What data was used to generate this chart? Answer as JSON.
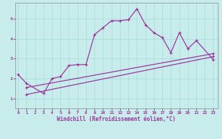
{
  "xlabel": "Windchill (Refroidissement éolien,°C)",
  "bg_color": "#c8ecec",
  "line_color": "#993399",
  "grid_color": "#aadddd",
  "x_ticks": [
    0,
    1,
    2,
    3,
    4,
    5,
    6,
    7,
    8,
    9,
    10,
    11,
    12,
    13,
    14,
    15,
    16,
    17,
    18,
    19,
    20,
    21,
    22,
    23
  ],
  "y_ticks": [
    1,
    2,
    3,
    4,
    5
  ],
  "ylim": [
    0.5,
    5.8
  ],
  "xlim": [
    -0.3,
    23.5
  ],
  "series1_x": [
    0,
    1,
    3,
    4,
    5,
    6,
    7,
    8,
    9,
    10,
    11,
    12,
    13,
    14,
    15,
    16,
    17,
    18,
    19,
    20,
    21,
    23
  ],
  "series1_y": [
    2.2,
    1.75,
    1.25,
    2.0,
    2.1,
    2.65,
    2.7,
    2.7,
    4.2,
    4.55,
    4.9,
    4.9,
    4.95,
    5.5,
    4.7,
    4.3,
    4.05,
    3.3,
    4.3,
    3.5,
    3.9,
    2.95
  ],
  "series2_x": [
    1,
    23
  ],
  "series2_y": [
    1.2,
    3.1
  ],
  "series3_x": [
    1,
    23
  ],
  "series3_y": [
    1.55,
    3.25
  ]
}
